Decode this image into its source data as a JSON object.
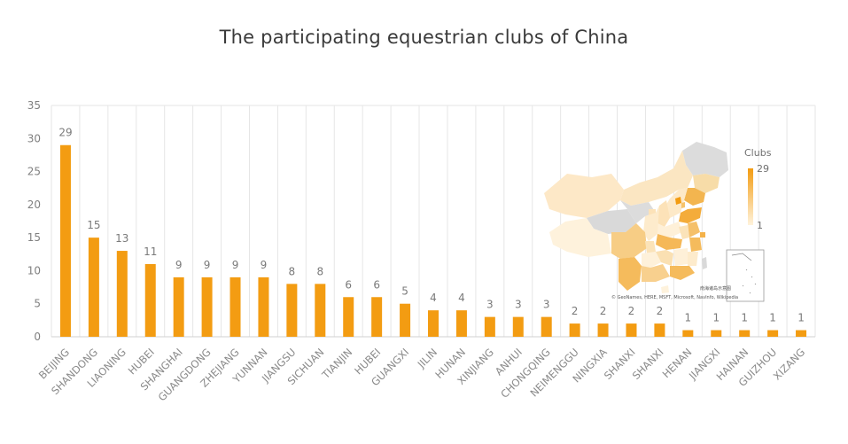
{
  "chart_data": {
    "type": "bar",
    "title": "The participating equestrian clubs of China",
    "xlabel": "",
    "ylabel": "",
    "ylim": [
      0,
      35
    ],
    "yticks": [
      0,
      5,
      10,
      15,
      20,
      25,
      30,
      35
    ],
    "grid": "vertical",
    "bar_color": "#f39c12",
    "categories": [
      "BEIJING",
      "SHANDONG",
      "LIAONING",
      "HUBEI",
      "SHANGHAI",
      "GUANGDONG",
      "ZHEJIANG",
      "YUNNAN",
      "JIANGSU",
      "SICHUAN",
      "TIANJIN",
      "HUBEI",
      "GUANGXI",
      "JILIN",
      "HUNAN",
      "XINJIANG",
      "ANHUI",
      "CHONGQING",
      "NEIMENGGU",
      "NINGXIA",
      "SHANXI",
      "SHANXI",
      "HENAN",
      "JIANGXI",
      "HAINAN",
      "GUIZHOU",
      "XIZANG"
    ],
    "values": [
      29,
      15,
      13,
      11,
      9,
      9,
      9,
      9,
      8,
      8,
      6,
      6,
      5,
      4,
      4,
      3,
      3,
      3,
      2,
      2,
      2,
      2,
      1,
      1,
      1,
      1,
      1
    ],
    "inset_map": {
      "legend_title": "Clubs",
      "legend_max": "29",
      "legend_min": "1",
      "color_low": "#fff3dc",
      "color_high": "#f39c12",
      "no_data_color": "#d9d9d9",
      "credit": "© GeoNames, HERE, MSFT, Microsoft, NavInfo, Wikipedia",
      "inset_caption": "南海诸岛示意图"
    }
  }
}
